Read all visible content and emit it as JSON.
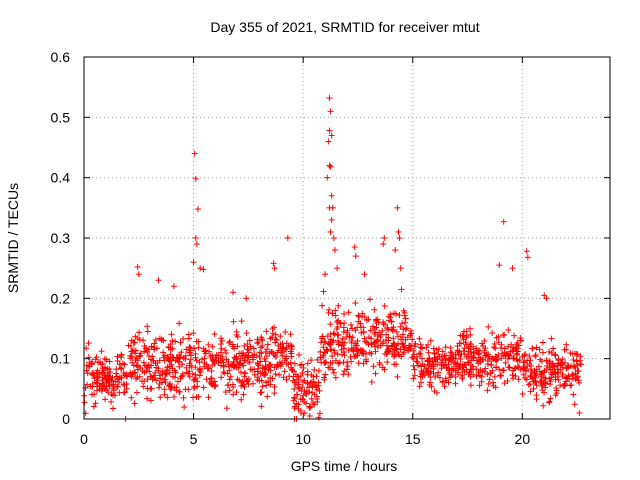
{
  "chart_data": {
    "type": "scatter",
    "title": "Day 355 of 2021, SRMTID for receiver mtut",
    "xlabel": "GPS time / hours",
    "ylabel": "SRMTID / TECUs",
    "xlim": [
      0,
      24
    ],
    "ylim": [
      0,
      0.6
    ],
    "xticks": [
      0,
      5,
      10,
      15,
      20
    ],
    "xtick_labels": [
      "0",
      "5",
      "10",
      "15",
      "20"
    ],
    "yticks": [
      0,
      0.1,
      0.2,
      0.3,
      0.4,
      0.5,
      0.6
    ],
    "ytick_labels": [
      "0",
      "0.1",
      "0.2",
      "0.3",
      "0.4",
      "0.5",
      "0.6"
    ],
    "grid": true,
    "marker": "+",
    "series": [
      {
        "name": "SRMTID",
        "color": "#ff0000",
        "bands": [
          {
            "x0": 0.0,
            "x1": 2.0,
            "center": 0.07,
            "spread": 0.05,
            "density": 70
          },
          {
            "x0": 2.0,
            "x1": 5.0,
            "center": 0.09,
            "spread": 0.06,
            "density": 70
          },
          {
            "x0": 5.0,
            "x1": 8.5,
            "center": 0.09,
            "spread": 0.06,
            "density": 70
          },
          {
            "x0": 8.5,
            "x1": 9.5,
            "center": 0.11,
            "spread": 0.07,
            "density": 70
          },
          {
            "x0": 9.5,
            "x1": 10.8,
            "center": 0.05,
            "spread": 0.05,
            "density": 70
          },
          {
            "x0": 10.8,
            "x1": 13.0,
            "center": 0.13,
            "spread": 0.06,
            "density": 70
          },
          {
            "x0": 13.0,
            "x1": 15.0,
            "center": 0.13,
            "spread": 0.06,
            "density": 70
          },
          {
            "x0": 15.0,
            "x1": 17.0,
            "center": 0.09,
            "spread": 0.04,
            "density": 70
          },
          {
            "x0": 17.0,
            "x1": 20.0,
            "center": 0.1,
            "spread": 0.05,
            "density": 70
          },
          {
            "x0": 20.0,
            "x1": 22.7,
            "center": 0.08,
            "spread": 0.05,
            "density": 70
          }
        ],
        "points": [
          [
            5.05,
            0.44
          ],
          [
            5.1,
            0.398
          ],
          [
            5.2,
            0.348
          ],
          [
            5.1,
            0.3
          ],
          [
            5.15,
            0.29
          ],
          [
            5.0,
            0.26
          ],
          [
            5.3,
            0.25
          ],
          [
            5.45,
            0.248
          ],
          [
            11.2,
            0.532
          ],
          [
            11.25,
            0.51
          ],
          [
            11.2,
            0.478
          ],
          [
            11.3,
            0.47
          ],
          [
            11.15,
            0.46
          ],
          [
            11.2,
            0.42
          ],
          [
            11.25,
            0.418
          ],
          [
            11.1,
            0.4
          ],
          [
            11.3,
            0.37
          ],
          [
            11.2,
            0.35
          ],
          [
            11.35,
            0.35
          ],
          [
            11.3,
            0.33
          ],
          [
            11.25,
            0.31
          ],
          [
            11.4,
            0.3
          ],
          [
            11.45,
            0.28
          ],
          [
            11.0,
            0.24
          ],
          [
            11.55,
            0.25
          ],
          [
            14.3,
            0.35
          ],
          [
            14.35,
            0.31
          ],
          [
            14.4,
            0.3
          ],
          [
            13.7,
            0.3
          ],
          [
            13.65,
            0.29
          ],
          [
            14.2,
            0.28
          ],
          [
            14.45,
            0.25
          ],
          [
            19.15,
            0.327
          ],
          [
            20.2,
            0.278
          ],
          [
            20.25,
            0.268
          ],
          [
            18.95,
            0.255
          ],
          [
            19.55,
            0.25
          ],
          [
            9.3,
            0.3
          ],
          [
            8.65,
            0.258
          ],
          [
            8.7,
            0.25
          ],
          [
            2.45,
            0.252
          ],
          [
            2.5,
            0.24
          ],
          [
            3.4,
            0.23
          ],
          [
            4.1,
            0.22
          ],
          [
            12.35,
            0.285
          ],
          [
            12.4,
            0.27
          ],
          [
            12.8,
            0.24
          ],
          [
            7.4,
            0.2
          ],
          [
            6.8,
            0.21
          ],
          [
            21.0,
            0.205
          ],
          [
            21.1,
            0.2
          ],
          [
            9.6,
            0.0
          ],
          [
            9.7,
            0.0
          ],
          [
            9.9,
            0.01
          ],
          [
            10.3,
            0.005
          ],
          [
            1.9,
            0.0
          ],
          [
            22.6,
            0.01
          ]
        ]
      }
    ]
  }
}
